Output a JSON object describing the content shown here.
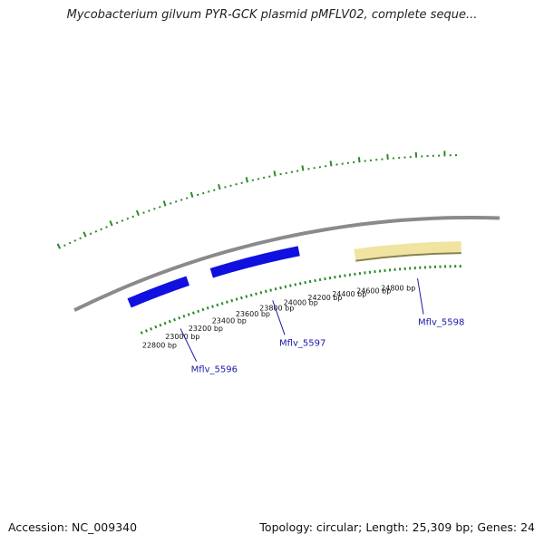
{
  "title": "Mycobacterium gilvum PYR-GCK plasmid pMFLV02, complete seque...",
  "footer": {
    "accession": "Accession: NC_009340",
    "summary": "Topology: circular; Length: 25,309 bp; Genes: 24"
  },
  "colors": {
    "backbone": "#8a8a8a",
    "gene_forward": "#1010e0",
    "gene_highlight": "#f0e4a0",
    "ticks": "#2a8a2a",
    "gene_label": "#1a1aa8"
  },
  "ticks": {
    "labels": [
      {
        "bp": 22800,
        "text": "22800 bp"
      },
      {
        "bp": 23000,
        "text": "23000 bp"
      },
      {
        "bp": 23200,
        "text": "23200 bp"
      },
      {
        "bp": 23400,
        "text": "23400 bp"
      },
      {
        "bp": 23600,
        "text": "23600 bp"
      },
      {
        "bp": 23800,
        "text": "23800 bp"
      },
      {
        "bp": 24000,
        "text": "24000 bp"
      },
      {
        "bp": 24200,
        "text": "24200 bp"
      },
      {
        "bp": 24400,
        "text": "24400 bp"
      },
      {
        "bp": 24600,
        "text": "24600 bp"
      },
      {
        "bp": 24800,
        "text": "24800 bp"
      }
    ]
  },
  "genes": [
    {
      "id": "Mflv_5596",
      "label": "Mflv_5596",
      "start": 22700,
      "end": 23180,
      "strand": "forward",
      "highlight": false
    },
    {
      "id": "Mflv_5597",
      "label": "Mflv_5597",
      "start": 23370,
      "end": 24060,
      "strand": "reverse",
      "highlight": false
    },
    {
      "id": "Mflv_5598",
      "label": "Mflv_5598",
      "start": 24480,
      "end": 25309,
      "strand": "reverse",
      "highlight": true
    }
  ]
}
